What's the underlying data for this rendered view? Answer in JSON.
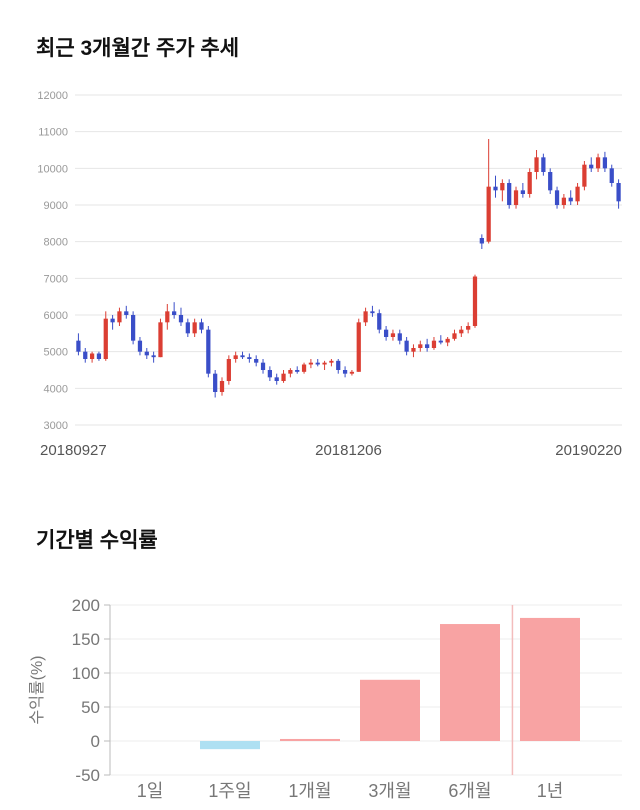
{
  "price_section": {
    "title": "최근 3개월간 주가 추세"
  },
  "returns_section": {
    "title": "기간별 수익률"
  },
  "chart_data": [
    {
      "type": "candlestick",
      "title": "최근 3개월간 주가 추세",
      "ylim": [
        3000,
        12000
      ],
      "yticks": [
        3000,
        4000,
        5000,
        6000,
        7000,
        8000,
        9000,
        10000,
        11000,
        12000
      ],
      "xtick_labels": [
        "20180927",
        "20181206",
        "20190220"
      ],
      "grid": true,
      "colors": {
        "up": "#db3e33",
        "down": "#3a4ec8",
        "grid": "#e6e6e6",
        "ytick_text": "#999999",
        "xtick_text": "#555555"
      },
      "candles": [
        [
          5300,
          5500,
          4900,
          5000
        ],
        [
          5000,
          5100,
          4700,
          4800
        ],
        [
          4800,
          5000,
          4700,
          4950
        ],
        [
          4950,
          5000,
          4750,
          4800
        ],
        [
          4800,
          6100,
          4750,
          5900
        ],
        [
          5900,
          6000,
          5600,
          5800
        ],
        [
          5800,
          6200,
          5700,
          6100
        ],
        [
          6100,
          6250,
          5900,
          6000
        ],
        [
          6000,
          6100,
          5200,
          5300
        ],
        [
          5300,
          5400,
          4900,
          5000
        ],
        [
          5000,
          5100,
          4800,
          4900
        ],
        [
          4900,
          5000,
          4700,
          4850
        ],
        [
          4850,
          5900,
          4850,
          5800
        ],
        [
          5800,
          6300,
          5600,
          6100
        ],
        [
          6100,
          6350,
          5900,
          6000
        ],
        [
          6000,
          6200,
          5700,
          5800
        ],
        [
          5800,
          5900,
          5400,
          5500
        ],
        [
          5500,
          5900,
          5400,
          5800
        ],
        [
          5800,
          5900,
          5500,
          5600
        ],
        [
          5600,
          5700,
          4300,
          4400
        ],
        [
          4400,
          4500,
          3750,
          3900
        ],
        [
          3900,
          4300,
          3800,
          4200
        ],
        [
          4200,
          4900,
          4100,
          4800
        ],
        [
          4800,
          5000,
          4700,
          4900
        ],
        [
          4900,
          5000,
          4800,
          4850
        ],
        [
          4850,
          4950,
          4700,
          4800
        ],
        [
          4800,
          4900,
          4600,
          4700
        ],
        [
          4700,
          4800,
          4400,
          4500
        ],
        [
          4500,
          4600,
          4200,
          4300
        ],
        [
          4300,
          4400,
          4100,
          4200
        ],
        [
          4200,
          4500,
          4150,
          4400
        ],
        [
          4400,
          4550,
          4300,
          4500
        ],
        [
          4500,
          4600,
          4400,
          4450
        ],
        [
          4450,
          4700,
          4400,
          4650
        ],
        [
          4650,
          4800,
          4550,
          4700
        ],
        [
          4700,
          4800,
          4600,
          4650
        ],
        [
          4650,
          4750,
          4500,
          4700
        ],
        [
          4700,
          4800,
          4600,
          4750
        ],
        [
          4750,
          4800,
          4400,
          4500
        ],
        [
          4500,
          4600,
          4300,
          4400
        ],
        [
          4400,
          4500,
          4350,
          4450
        ],
        [
          4450,
          5900,
          4450,
          5800
        ],
        [
          5800,
          6200,
          5700,
          6100
        ],
        [
          6100,
          6250,
          5950,
          6050
        ],
        [
          6050,
          6150,
          5500,
          5600
        ],
        [
          5600,
          5700,
          5300,
          5400
        ],
        [
          5400,
          5600,
          5300,
          5500
        ],
        [
          5500,
          5600,
          5200,
          5300
        ],
        [
          5300,
          5400,
          4900,
          5000
        ],
        [
          5000,
          5200,
          4850,
          5100
        ],
        [
          5100,
          5300,
          5000,
          5200
        ],
        [
          5200,
          5350,
          5000,
          5100
        ],
        [
          5100,
          5400,
          5050,
          5300
        ],
        [
          5300,
          5450,
          5200,
          5250
        ],
        [
          5250,
          5400,
          5150,
          5350
        ],
        [
          5350,
          5600,
          5300,
          5500
        ],
        [
          5500,
          5700,
          5400,
          5600
        ],
        [
          5600,
          5800,
          5500,
          5700
        ],
        [
          5700,
          7100,
          5650,
          7050
        ],
        [
          8100,
          8200,
          7800,
          7950
        ],
        [
          8000,
          10800,
          7950,
          9500
        ],
        [
          9500,
          9800,
          9200,
          9400
        ],
        [
          9400,
          9700,
          9100,
          9600
        ],
        [
          9600,
          9700,
          8900,
          9000
        ],
        [
          9000,
          9500,
          8900,
          9400
        ],
        [
          9400,
          9600,
          9200,
          9300
        ],
        [
          9300,
          10000,
          9200,
          9900
        ],
        [
          9900,
          10500,
          9700,
          10300
        ],
        [
          10300,
          10400,
          9800,
          9900
        ],
        [
          9900,
          10000,
          9300,
          9400
        ],
        [
          9400,
          9500,
          8900,
          9000
        ],
        [
          9000,
          9300,
          8900,
          9200
        ],
        [
          9200,
          9400,
          9000,
          9100
        ],
        [
          9100,
          9600,
          9000,
          9500
        ],
        [
          9500,
          10200,
          9400,
          10100
        ],
        [
          10100,
          10300,
          9900,
          10000
        ],
        [
          10000,
          10400,
          9900,
          10300
        ],
        [
          10300,
          10450,
          9900,
          10000
        ],
        [
          10000,
          10100,
          9500,
          9600
        ],
        [
          9600,
          9700,
          8900,
          9100
        ]
      ]
    },
    {
      "type": "bar",
      "title": "기간별 수익률",
      "categories": [
        "1일",
        "1주일",
        "1개월",
        "3개월",
        "6개월",
        "1년"
      ],
      "values": [
        0,
        -12,
        3,
        90,
        172,
        181
      ],
      "ylabel": "수익률(%)",
      "xlabel": "",
      "yticks": [
        -50,
        0,
        50,
        100,
        150,
        200
      ],
      "ylim": [
        -50,
        200
      ],
      "grid": true,
      "legend": false,
      "colors": {
        "positive": "#f8a3a3",
        "negative": "#aee0f2",
        "grid": "#ececec",
        "axis": "#bbbbbb",
        "tick_text": "#777777",
        "crosshair": "#f3bcbc"
      },
      "crosshair_x_frac": 0.786
    }
  ]
}
